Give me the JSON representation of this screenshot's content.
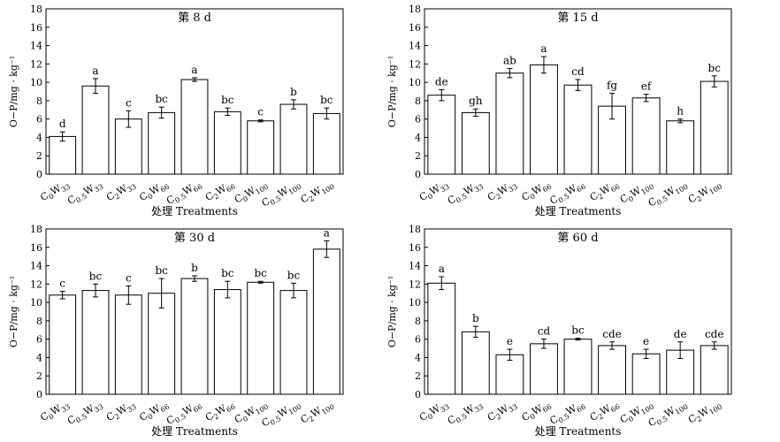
{
  "chart_data": [
    {
      "type": "bar",
      "title": "第 8 d",
      "xlabel": "处理 Treatments",
      "ylabel": "O−P/mg · kg⁻¹",
      "ylim": [
        0,
        18
      ],
      "yticks": [
        0,
        2,
        4,
        6,
        8,
        10,
        12,
        14,
        16,
        18
      ],
      "categories": [
        "C0W33",
        "C0.5W33",
        "C2W33",
        "C0W66",
        "C0.5W66",
        "C2W66",
        "C0W100",
        "C0.5W100",
        "C2W100"
      ],
      "values": [
        4.1,
        9.6,
        6.0,
        6.7,
        10.3,
        6.8,
        5.8,
        7.6,
        6.6
      ],
      "errors": [
        0.5,
        0.8,
        0.9,
        0.6,
        0.2,
        0.4,
        0.1,
        0.5,
        0.6
      ],
      "letters": [
        "d",
        "a",
        "c",
        "bc",
        "a",
        "bc",
        "c",
        "b",
        "bc"
      ]
    },
    {
      "type": "bar",
      "title": "第 15 d",
      "xlabel": "处理 Treatments",
      "ylabel": "O−P/mg · kg⁻¹",
      "ylim": [
        0,
        18
      ],
      "yticks": [
        0,
        2,
        4,
        6,
        8,
        10,
        12,
        14,
        16,
        18
      ],
      "categories": [
        "C0W33",
        "C0.5W33",
        "C2W33",
        "C0W66",
        "C0.5W66",
        "C2W66",
        "C0W100",
        "C0.5W100",
        "C2W100"
      ],
      "values": [
        8.6,
        6.7,
        11.0,
        11.9,
        9.7,
        7.4,
        8.3,
        5.8,
        10.1
      ],
      "errors": [
        0.6,
        0.4,
        0.5,
        0.9,
        0.6,
        1.4,
        0.4,
        0.2,
        0.6
      ],
      "letters": [
        "de",
        "gh",
        "ab",
        "a",
        "cd",
        "fg",
        "ef",
        "h",
        "bc"
      ]
    },
    {
      "type": "bar",
      "title": "第 30 d",
      "xlabel": "处理 Treatments",
      "ylabel": "O−P/mg · kg⁻¹",
      "ylim": [
        0,
        18
      ],
      "yticks": [
        0,
        2,
        4,
        6,
        8,
        10,
        12,
        14,
        16,
        18
      ],
      "categories": [
        "C0W33",
        "C0.5W33",
        "C2W33",
        "C0W66",
        "C0.5W66",
        "C2W66",
        "C0W100",
        "C0.5W100",
        "C2W100"
      ],
      "values": [
        10.8,
        11.3,
        10.8,
        11.0,
        12.6,
        11.4,
        12.2,
        11.3,
        15.8
      ],
      "errors": [
        0.4,
        0.7,
        1.0,
        1.6,
        0.3,
        0.9,
        0.1,
        0.8,
        0.9
      ],
      "letters": [
        "c",
        "bc",
        "c",
        "bc",
        "b",
        "bc",
        "bc",
        "bc",
        "a"
      ]
    },
    {
      "type": "bar",
      "title": "第 60 d",
      "xlabel": "处理 Treatments",
      "ylabel": "O−P/mg · kg⁻¹",
      "ylim": [
        0,
        18
      ],
      "yticks": [
        0,
        2,
        4,
        6,
        8,
        10,
        12,
        14,
        16,
        18
      ],
      "categories": [
        "C0W33",
        "C0.5W33",
        "C2W33",
        "C0W66",
        "C0.5W66",
        "C2W66",
        "C0W100",
        "C0.5W100",
        "C2W100"
      ],
      "values": [
        12.1,
        6.8,
        4.3,
        5.5,
        6.0,
        5.3,
        4.4,
        4.8,
        5.3
      ],
      "errors": [
        0.7,
        0.6,
        0.6,
        0.5,
        0.1,
        0.4,
        0.5,
        0.9,
        0.4
      ],
      "letters": [
        "a",
        "b",
        "e",
        "cd",
        "bc",
        "cde",
        "e",
        "de",
        "cde"
      ]
    }
  ]
}
